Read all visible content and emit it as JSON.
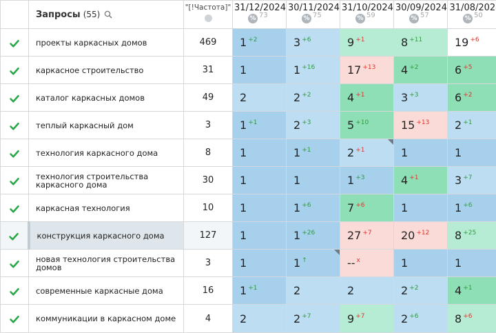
{
  "header": {
    "queries_label": "Запросы",
    "queries_count": "(55)",
    "freq_label": "\"[!Частота]\"",
    "dates": [
      {
        "date": "31/12/2024",
        "visibility": "73"
      },
      {
        "date": "30/11/2024",
        "visibility": "75"
      },
      {
        "date": "31/10/2024",
        "visibility": "59"
      },
      {
        "date": "30/09/2024",
        "visibility": "57"
      },
      {
        "date": "31/08/2024",
        "visibility": "50"
      }
    ],
    "pct_symbol": "%"
  },
  "rows": [
    {
      "query": "проекты каркасных домов",
      "freq": "469",
      "positions": [
        {
          "v": "1",
          "d": "+2",
          "t": "up",
          "c": "c-blue"
        },
        {
          "v": "3",
          "d": "+6",
          "t": "up",
          "c": "c-lblue"
        },
        {
          "v": "9",
          "d": "+1",
          "t": "down",
          "c": "c-lgreen"
        },
        {
          "v": "8",
          "d": "+11",
          "t": "up",
          "c": "c-lgreen"
        },
        {
          "v": "19",
          "d": "+6",
          "t": "down",
          "c": "c-white"
        }
      ]
    },
    {
      "query": "каркасное строительство",
      "freq": "31",
      "positions": [
        {
          "v": "1",
          "d": "",
          "t": "",
          "c": "c-blue"
        },
        {
          "v": "1",
          "d": "+16",
          "t": "up",
          "c": "c-lblue"
        },
        {
          "v": "17",
          "d": "+13",
          "t": "down",
          "c": "c-pink"
        },
        {
          "v": "4",
          "d": "+2",
          "t": "up",
          "c": "c-green"
        },
        {
          "v": "6",
          "d": "+5",
          "t": "down",
          "c": "c-green"
        }
      ]
    },
    {
      "query": "каталог каркасных домов",
      "freq": "49",
      "positions": [
        {
          "v": "2",
          "d": "",
          "t": "",
          "c": "c-lblue"
        },
        {
          "v": "2",
          "d": "+2",
          "t": "up",
          "c": "c-lblue"
        },
        {
          "v": "4",
          "d": "+1",
          "t": "down",
          "c": "c-green"
        },
        {
          "v": "3",
          "d": "+3",
          "t": "up",
          "c": "c-lblue"
        },
        {
          "v": "6",
          "d": "+2",
          "t": "down",
          "c": "c-green"
        }
      ]
    },
    {
      "query": "теплый каркасный дом",
      "freq": "3",
      "positions": [
        {
          "v": "1",
          "d": "+1",
          "t": "up",
          "c": "c-blue"
        },
        {
          "v": "2",
          "d": "+3",
          "t": "up",
          "c": "c-lblue"
        },
        {
          "v": "5",
          "d": "+10",
          "t": "up",
          "c": "c-green"
        },
        {
          "v": "15",
          "d": "+13",
          "t": "down",
          "c": "c-pink"
        },
        {
          "v": "2",
          "d": "+1",
          "t": "up",
          "c": "c-lblue"
        }
      ]
    },
    {
      "query": "технология каркасного дома",
      "freq": "8",
      "positions": [
        {
          "v": "1",
          "d": "",
          "t": "",
          "c": "c-blue"
        },
        {
          "v": "1",
          "d": "+1",
          "t": "up",
          "c": "c-blue"
        },
        {
          "v": "2",
          "d": "+1",
          "t": "down",
          "c": "c-lblue",
          "corner": true
        },
        {
          "v": "1",
          "d": "",
          "t": "",
          "c": "c-blue"
        },
        {
          "v": "1",
          "d": "",
          "t": "",
          "c": "c-blue"
        }
      ]
    },
    {
      "query": "технология строительства каркасного дома",
      "freq": "30",
      "positions": [
        {
          "v": "1",
          "d": "",
          "t": "",
          "c": "c-blue"
        },
        {
          "v": "1",
          "d": "",
          "t": "",
          "c": "c-blue"
        },
        {
          "v": "1",
          "d": "+3",
          "t": "up",
          "c": "c-blue"
        },
        {
          "v": "4",
          "d": "+1",
          "t": "down",
          "c": "c-green"
        },
        {
          "v": "3",
          "d": "+7",
          "t": "up",
          "c": "c-lblue"
        }
      ]
    },
    {
      "query": "каркасная технология",
      "freq": "10",
      "positions": [
        {
          "v": "1",
          "d": "",
          "t": "",
          "c": "c-blue"
        },
        {
          "v": "1",
          "d": "+6",
          "t": "up",
          "c": "c-blue"
        },
        {
          "v": "7",
          "d": "+6",
          "t": "down",
          "c": "c-green"
        },
        {
          "v": "1",
          "d": "",
          "t": "",
          "c": "c-blue"
        },
        {
          "v": "1",
          "d": "+6",
          "t": "up",
          "c": "c-blue"
        }
      ]
    },
    {
      "query": "конструкция каркасного дома",
      "freq": "127",
      "selected": true,
      "positions": [
        {
          "v": "1",
          "d": "",
          "t": "",
          "c": "c-blue"
        },
        {
          "v": "1",
          "d": "+26",
          "t": "up",
          "c": "c-blue"
        },
        {
          "v": "27",
          "d": "+7",
          "t": "down",
          "c": "c-pink"
        },
        {
          "v": "20",
          "d": "+12",
          "t": "down",
          "c": "c-pink"
        },
        {
          "v": "8",
          "d": "+25",
          "t": "up",
          "c": "c-lgreen"
        }
      ]
    },
    {
      "query": "новая технология строительства домов",
      "freq": "3",
      "positions": [
        {
          "v": "1",
          "d": "",
          "t": "",
          "c": "c-blue"
        },
        {
          "v": "1",
          "d": "↑",
          "t": "up",
          "c": "c-blue",
          "corner": true
        },
        {
          "v": "--",
          "d": "x",
          "t": "down",
          "c": "c-pink"
        },
        {
          "v": "1",
          "d": "",
          "t": "",
          "c": "c-blue"
        },
        {
          "v": "1",
          "d": "",
          "t": "",
          "c": "c-blue"
        }
      ]
    },
    {
      "query": "современные каркасные дома",
      "freq": "16",
      "positions": [
        {
          "v": "1",
          "d": "+1",
          "t": "up",
          "c": "c-blue"
        },
        {
          "v": "2",
          "d": "",
          "t": "",
          "c": "c-lblue"
        },
        {
          "v": "2",
          "d": "",
          "t": "",
          "c": "c-lblue"
        },
        {
          "v": "2",
          "d": "+2",
          "t": "up",
          "c": "c-lblue"
        },
        {
          "v": "4",
          "d": "+1",
          "t": "up",
          "c": "c-green",
          "corner": true
        }
      ]
    },
    {
      "query": "коммуникации в каркасном доме",
      "freq": "4",
      "positions": [
        {
          "v": "2",
          "d": "",
          "t": "",
          "c": "c-lblue"
        },
        {
          "v": "2",
          "d": "+7",
          "t": "up",
          "c": "c-lblue"
        },
        {
          "v": "9",
          "d": "+7",
          "t": "down",
          "c": "c-lgreen"
        },
        {
          "v": "2",
          "d": "+6",
          "t": "up",
          "c": "c-lblue"
        },
        {
          "v": "8",
          "d": "+6",
          "t": "down",
          "c": "c-lgreen"
        }
      ]
    }
  ]
}
